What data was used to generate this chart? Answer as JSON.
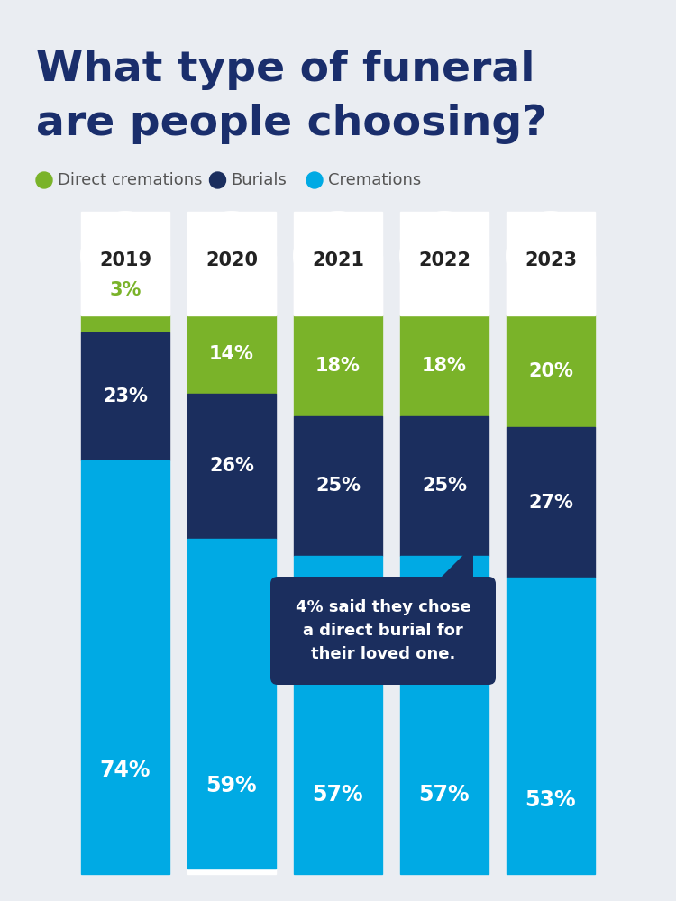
{
  "title_line1": "What type of funeral",
  "title_line2": "are people choosing?",
  "title_color": "#1a2e6c",
  "background_color": "#eaedf2",
  "years": [
    "2019",
    "2020",
    "2021",
    "2022",
    "2023"
  ],
  "cremations": [
    74,
    59,
    57,
    57,
    53
  ],
  "burials": [
    23,
    26,
    25,
    25,
    27
  ],
  "direct_cremations": [
    3,
    14,
    18,
    18,
    20
  ],
  "color_cremations": "#00aae4",
  "color_burials": "#1b2e5e",
  "color_direct": "#7ab329",
  "color_white": "#ffffff",
  "legend_labels": [
    "Direct cremations",
    "Burials",
    "Cremations"
  ],
  "legend_colors": [
    "#7ab329",
    "#1b2e5e",
    "#00aae4"
  ],
  "annotation_text": "4% said they chose\na direct burial for\ntheir loved one.",
  "annotation_bg": "#1b2e5e",
  "annotation_text_color": "#ffffff",
  "year_label_color": "#222222",
  "dc_label_2019_color": "#7ab329"
}
